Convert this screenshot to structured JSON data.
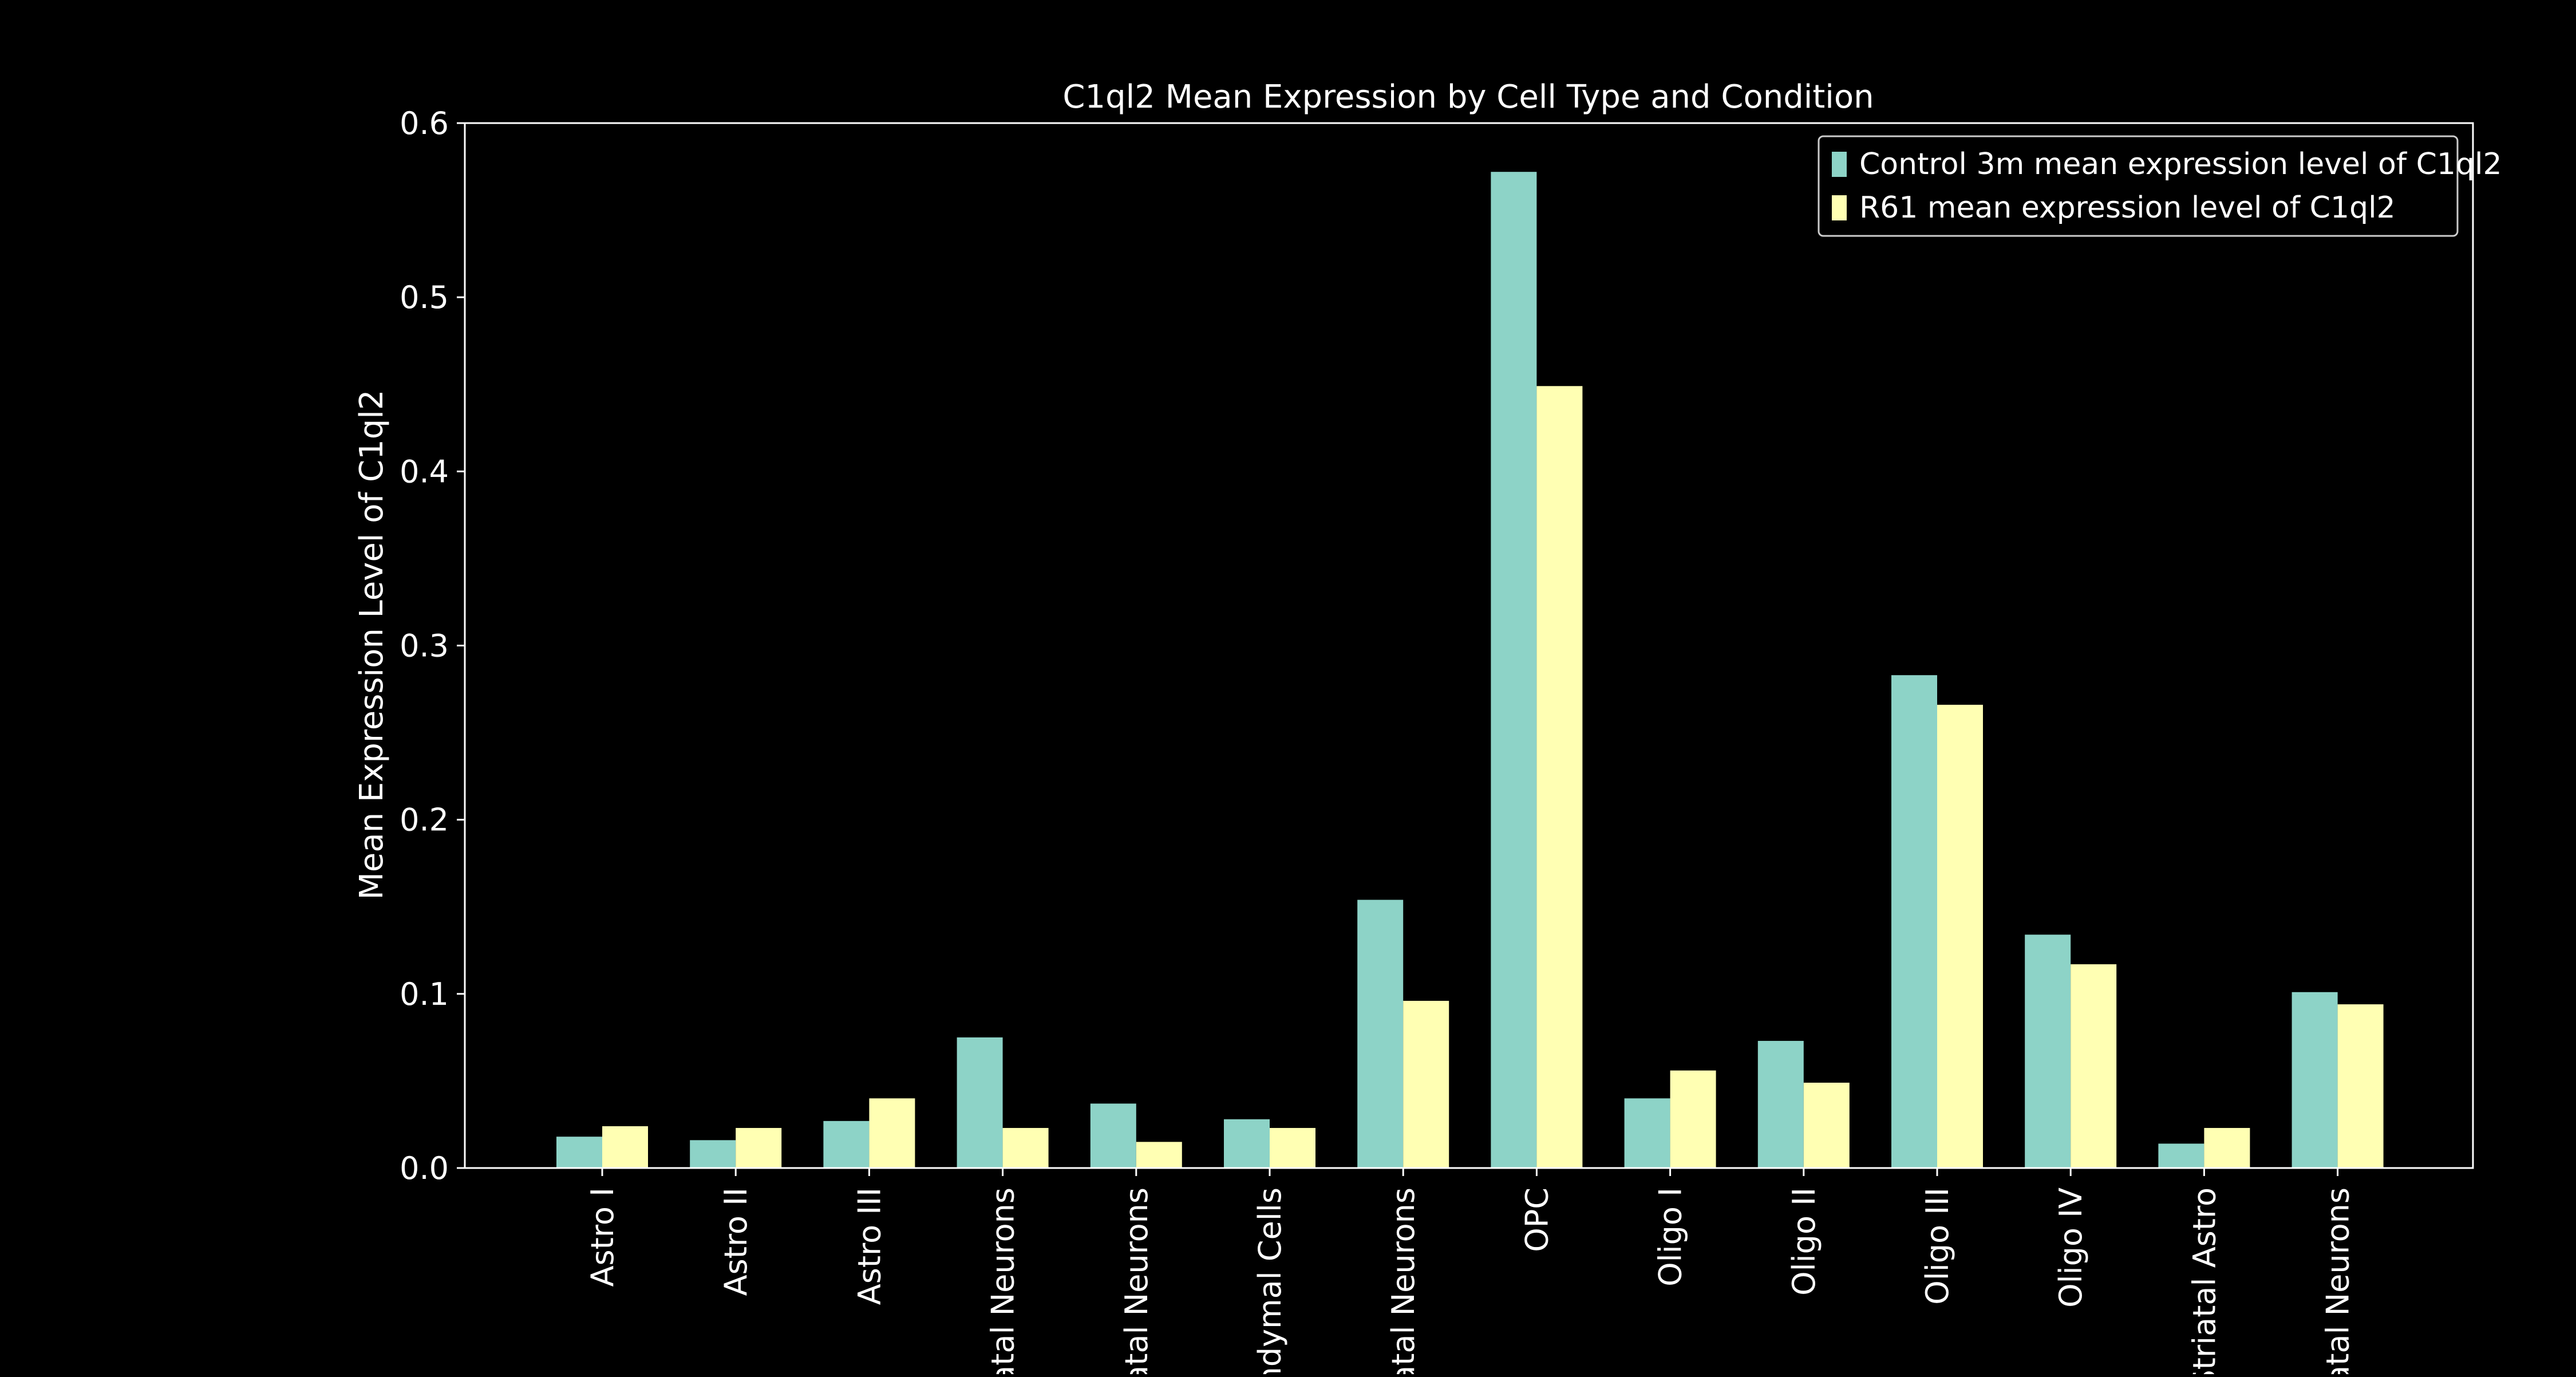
{
  "colors": {
    "background": "#000000",
    "foreground": "#ffffff",
    "control": "#8dd3c7",
    "r61": "#ffffb3"
  },
  "chart_data": {
    "type": "bar",
    "title": "C1ql2 Mean Expression by Cell Type and Condition",
    "xlabel": "",
    "ylabel": "Mean Expression Level of C1ql2",
    "ylim": [
      0,
      0.6
    ],
    "yticks": [
      "0.0",
      "0.1",
      "0.2",
      "0.3",
      "0.4",
      "0.5",
      "0.6"
    ],
    "grid": false,
    "legend_position": "top-right",
    "categories": [
      "Astro I",
      "Astro II",
      "Astro III",
      "atal Neurons",
      "atal Neurons",
      "ndymal Cells",
      "atal Neurons",
      "OPC",
      "Oligo I",
      "Oligo II",
      "Oligo III",
      "Oligo IV",
      "Striatal Astro",
      "atal Neurons"
    ],
    "series": [
      {
        "name": "Control 3m mean expression level of C1ql2",
        "color": "#8dd3c7",
        "values": [
          0.018,
          0.016,
          0.027,
          0.075,
          0.037,
          0.028,
          0.154,
          0.572,
          0.04,
          0.073,
          0.283,
          0.134,
          0.014,
          0.101
        ]
      },
      {
        "name": "R61 mean expression level of C1ql2",
        "color": "#ffffb3",
        "values": [
          0.024,
          0.023,
          0.04,
          0.023,
          0.015,
          0.023,
          0.096,
          0.449,
          0.056,
          0.049,
          0.266,
          0.117,
          0.023,
          0.094
        ]
      }
    ]
  }
}
